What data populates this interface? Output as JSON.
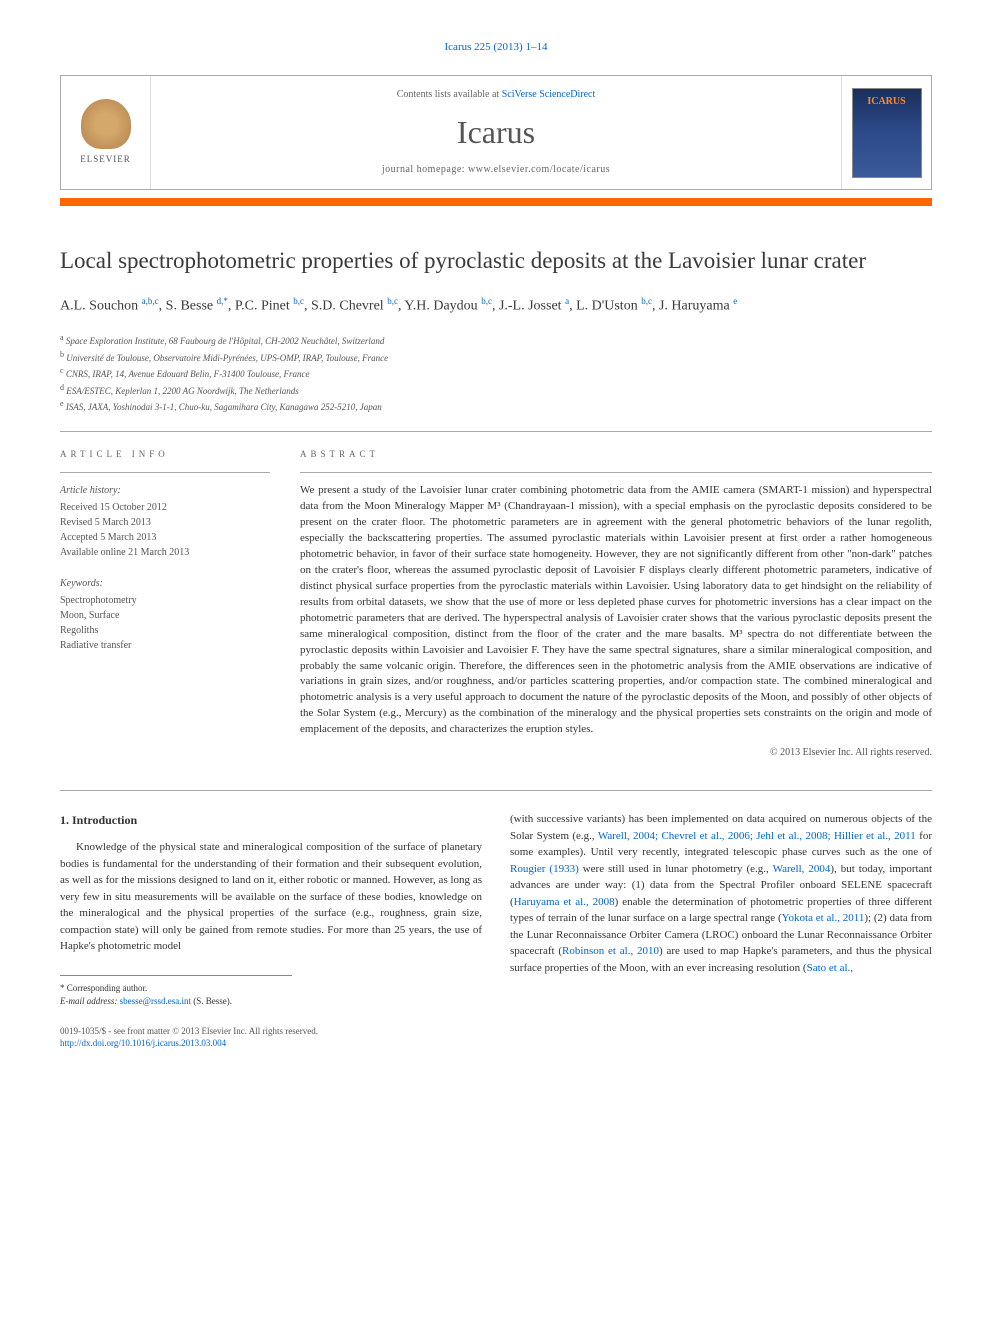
{
  "header": {
    "journal_ref_prefix": "Icarus 225 (2013) 1–14",
    "contents_prefix": "Contents lists available at ",
    "contents_link": "SciVerse ScienceDirect",
    "journal_name": "Icarus",
    "homepage_prefix": "journal homepage: ",
    "homepage_url": "www.elsevier.com/locate/icarus",
    "publisher_name": "ELSEVIER",
    "cover_title": "ICARUS"
  },
  "article": {
    "title": "Local spectrophotometric properties of pyroclastic deposits at the Lavoisier lunar crater",
    "authors_html": "A.L. Souchon <sup>a,b,c</sup>, S. Besse <sup>d,*</sup>, P.C. Pinet <sup>b,c</sup>, S.D. Chevrel <sup>b,c</sup>, Y.H. Daydou <sup>b,c</sup>, J.-L. Josset <sup>a</sup>, L. D'Uston <sup>b,c</sup>, J. Haruyama <sup>e</sup>",
    "affiliations": [
      {
        "sup": "a",
        "text": "Space Exploration Institute, 68 Faubourg de l'Hôpital, CH-2002 Neuchâtel, Switzerland"
      },
      {
        "sup": "b",
        "text": "Université de Toulouse, Observatoire Midi-Pyrénées, UPS-OMP, IRAP, Toulouse, France"
      },
      {
        "sup": "c",
        "text": "CNRS, IRAP, 14, Avenue Edouard Belin, F-31400 Toulouse, France"
      },
      {
        "sup": "d",
        "text": "ESA/ESTEC, Keplerlan 1, 2200 AG Noordwijk, The Netherlands"
      },
      {
        "sup": "e",
        "text": "ISAS, JAXA, Yoshinodai 3-1-1, Chuo-ku, Sagamihara City, Kanagawa 252-5210, Japan"
      }
    ]
  },
  "info": {
    "label": "article info",
    "history_label": "Article history:",
    "history": [
      "Received 15 October 2012",
      "Revised 5 March 2013",
      "Accepted 5 March 2013",
      "Available online 21 March 2013"
    ],
    "keywords_label": "Keywords:",
    "keywords": [
      "Spectrophotometry",
      "Moon, Surface",
      "Regoliths",
      "Radiative transfer"
    ]
  },
  "abstract": {
    "label": "abstract",
    "text": "We present a study of the Lavoisier lunar crater combining photometric data from the AMIE camera (SMART-1 mission) and hyperspectral data from the Moon Mineralogy Mapper M³ (Chandrayaan-1 mission), with a special emphasis on the pyroclastic deposits considered to be present on the crater floor. The photometric parameters are in agreement with the general photometric behaviors of the lunar regolith, especially the backscattering properties. The assumed pyroclastic materials within Lavoisier present at first order a rather homogeneous photometric behavior, in favor of their surface state homogeneity. However, they are not significantly different from other \"non-dark\" patches on the crater's floor, whereas the assumed pyroclastic deposit of Lavoisier F displays clearly different photometric parameters, indicative of distinct physical surface properties from the pyroclastic materials within Lavoisier. Using laboratory data to get hindsight on the reliability of results from orbital datasets, we show that the use of more or less depleted phase curves for photometric inversions has a clear impact on the photometric parameters that are derived. The hyperspectral analysis of Lavoisier crater shows that the various pyroclastic deposits present the same mineralogical composition, distinct from the floor of the crater and the mare basalts. M³ spectra do not differentiate between the pyroclastic deposits within Lavoisier and Lavoisier F. They have the same spectral signatures, share a similar mineralogical composition, and probably the same volcanic origin. Therefore, the differences seen in the photometric analysis from the AMIE observations are indicative of variations in grain sizes, and/or roughness, and/or particles scattering properties, and/or compaction state. The combined mineralogical and photometric analysis is a very useful approach to document the nature of the pyroclastic deposits of the Moon, and possibly of other objects of the Solar System (e.g., Mercury) as the combination of the mineralogy and the physical properties sets constraints on the origin and mode of emplacement of the deposits, and characterizes the eruption styles.",
    "copyright": "© 2013 Elsevier Inc. All rights reserved."
  },
  "body": {
    "heading": "1. Introduction",
    "col1_html": "Knowledge of the physical state and mineralogical composition of the surface of planetary bodies is fundamental for the understanding of their formation and their subsequent evolution, as well as for the missions designed to land on it, either robotic or manned. However, as long as very few in situ measurements will be available on the surface of these bodies, knowledge on the mineralogical and the physical properties of the surface (e.g., roughness, grain size, compaction state) will only be gained from remote studies. For more than 25 years, the use of Hapke's photometric model",
    "col2_html": "(with successive variants) has been implemented on data acquired on numerous objects of the Solar System (e.g., <a>Warell, 2004; Chevrel et al., 2006; Jehl et al., 2008; Hillier et al., 2011</a> for some examples). Until very recently, integrated telescopic phase curves such as the one of <a>Rougier (1933)</a> were still used in lunar photometry (e.g., <a>Warell, 2004</a>), but today, important advances are under way: (1) data from the Spectral Profiler onboard SELENE spacecraft (<a>Haruyama et al., 2008</a>) enable the determination of photometric properties of three different types of terrain of the lunar surface on a large spectral range (<a>Yokota et al., 2011</a>); (2) data from the Lunar Reconnaissance Orbiter Camera (LROC) onboard the Lunar Reconnaissance Orbiter spacecraft (<a>Robinson et al., 2010</a>) are used to map Hapke's parameters, and thus the physical surface properties of the Moon, with an ever increasing resolution (<a>Sato et al.,</a>"
  },
  "footnote": {
    "marker": "* Corresponding author.",
    "email_label": "E-mail address: ",
    "email": "sbesse@rssd.esa.int",
    "email_suffix": " (S. Besse)."
  },
  "bottom": {
    "line1": "0019-1035/$ - see front matter © 2013 Elsevier Inc. All rights reserved.",
    "doi": "http://dx.doi.org/10.1016/j.icarus.2013.03.004"
  },
  "colors": {
    "accent": "#ff6600",
    "link": "#0066cc",
    "text": "#333333",
    "muted": "#666666",
    "border": "#aaaaaa"
  }
}
